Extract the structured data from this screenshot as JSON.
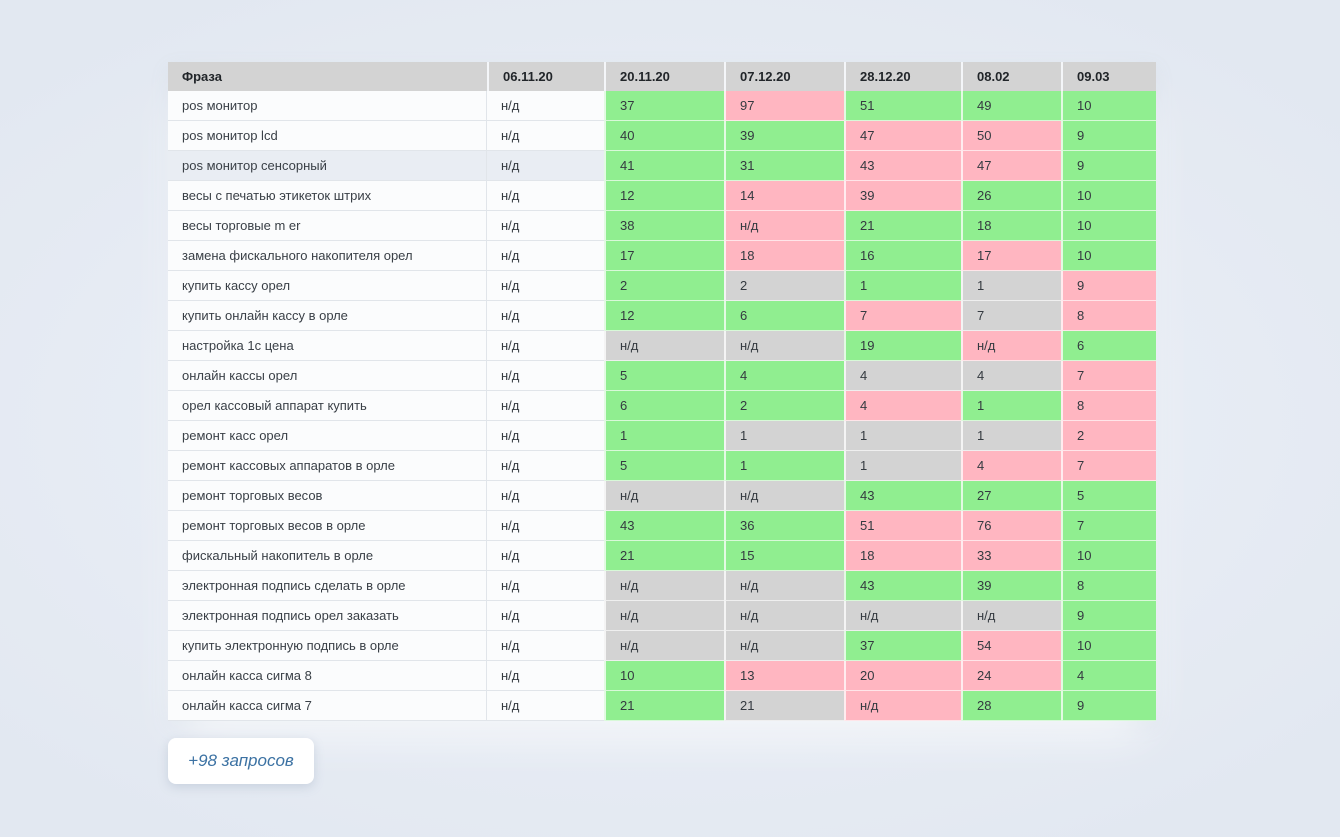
{
  "table": {
    "columns": [
      {
        "label": "Фраза"
      },
      {
        "label": "06.11.20"
      },
      {
        "label": "20.11.20"
      },
      {
        "label": "07.12.20"
      },
      {
        "label": "28.12.20"
      },
      {
        "label": "08.02"
      },
      {
        "label": "09.03"
      }
    ],
    "rows": [
      {
        "phrase": "pos монитор",
        "highlight": false,
        "values": [
          {
            "v": "н/д",
            "c": "plain"
          },
          {
            "v": "37",
            "c": "green"
          },
          {
            "v": "97",
            "c": "red"
          },
          {
            "v": "51",
            "c": "green"
          },
          {
            "v": "49",
            "c": "green"
          },
          {
            "v": "10",
            "c": "green"
          }
        ]
      },
      {
        "phrase": "pos монитор lcd",
        "highlight": false,
        "values": [
          {
            "v": "н/д",
            "c": "plain"
          },
          {
            "v": "40",
            "c": "green"
          },
          {
            "v": "39",
            "c": "green"
          },
          {
            "v": "47",
            "c": "red"
          },
          {
            "v": "50",
            "c": "red"
          },
          {
            "v": "9",
            "c": "green"
          }
        ]
      },
      {
        "phrase": "pos монитор сенсорный",
        "highlight": true,
        "values": [
          {
            "v": "н/д",
            "c": "plain"
          },
          {
            "v": "41",
            "c": "green"
          },
          {
            "v": "31",
            "c": "green"
          },
          {
            "v": "43",
            "c": "red"
          },
          {
            "v": "47",
            "c": "red"
          },
          {
            "v": "9",
            "c": "green"
          }
        ]
      },
      {
        "phrase": "весы с печатью этикеток штрих",
        "highlight": false,
        "values": [
          {
            "v": "н/д",
            "c": "plain"
          },
          {
            "v": "12",
            "c": "green"
          },
          {
            "v": "14",
            "c": "red"
          },
          {
            "v": "39",
            "c": "red"
          },
          {
            "v": "26",
            "c": "green"
          },
          {
            "v": "10",
            "c": "green"
          }
        ]
      },
      {
        "phrase": "весы торговые m er",
        "highlight": false,
        "values": [
          {
            "v": "н/д",
            "c": "plain"
          },
          {
            "v": "38",
            "c": "green"
          },
          {
            "v": "н/д",
            "c": "red"
          },
          {
            "v": "21",
            "c": "green"
          },
          {
            "v": "18",
            "c": "green"
          },
          {
            "v": "10",
            "c": "green"
          }
        ]
      },
      {
        "phrase": "замена фискального накопителя орел",
        "highlight": false,
        "values": [
          {
            "v": "н/д",
            "c": "plain"
          },
          {
            "v": "17",
            "c": "green"
          },
          {
            "v": "18",
            "c": "red"
          },
          {
            "v": "16",
            "c": "green"
          },
          {
            "v": "17",
            "c": "red"
          },
          {
            "v": "10",
            "c": "green"
          }
        ]
      },
      {
        "phrase": "купить кассу орел",
        "highlight": false,
        "values": [
          {
            "v": "н/д",
            "c": "plain"
          },
          {
            "v": "2",
            "c": "green"
          },
          {
            "v": "2",
            "c": "gray"
          },
          {
            "v": "1",
            "c": "green"
          },
          {
            "v": "1",
            "c": "gray"
          },
          {
            "v": "9",
            "c": "red"
          }
        ]
      },
      {
        "phrase": "купить онлайн кассу в орле",
        "highlight": false,
        "values": [
          {
            "v": "н/д",
            "c": "plain"
          },
          {
            "v": "12",
            "c": "green"
          },
          {
            "v": "6",
            "c": "green"
          },
          {
            "v": "7",
            "c": "red"
          },
          {
            "v": "7",
            "c": "gray"
          },
          {
            "v": "8",
            "c": "red"
          }
        ]
      },
      {
        "phrase": "настройка 1с цена",
        "highlight": false,
        "values": [
          {
            "v": "н/д",
            "c": "plain"
          },
          {
            "v": "н/д",
            "c": "gray"
          },
          {
            "v": "н/д",
            "c": "gray"
          },
          {
            "v": "19",
            "c": "green"
          },
          {
            "v": "н/д",
            "c": "red"
          },
          {
            "v": "6",
            "c": "green"
          }
        ]
      },
      {
        "phrase": "онлайн кассы орел",
        "highlight": false,
        "values": [
          {
            "v": "н/д",
            "c": "plain"
          },
          {
            "v": "5",
            "c": "green"
          },
          {
            "v": "4",
            "c": "green"
          },
          {
            "v": "4",
            "c": "gray"
          },
          {
            "v": "4",
            "c": "gray"
          },
          {
            "v": "7",
            "c": "red"
          }
        ]
      },
      {
        "phrase": "орел кассовый аппарат купить",
        "highlight": false,
        "values": [
          {
            "v": "н/д",
            "c": "plain"
          },
          {
            "v": "6",
            "c": "green"
          },
          {
            "v": "2",
            "c": "green"
          },
          {
            "v": "4",
            "c": "red"
          },
          {
            "v": "1",
            "c": "green"
          },
          {
            "v": "8",
            "c": "red"
          }
        ]
      },
      {
        "phrase": "ремонт касс орел",
        "highlight": false,
        "values": [
          {
            "v": "н/д",
            "c": "plain"
          },
          {
            "v": "1",
            "c": "green"
          },
          {
            "v": "1",
            "c": "gray"
          },
          {
            "v": "1",
            "c": "gray"
          },
          {
            "v": "1",
            "c": "gray"
          },
          {
            "v": "2",
            "c": "red"
          }
        ]
      },
      {
        "phrase": "ремонт кассовых аппаратов в орле",
        "highlight": false,
        "values": [
          {
            "v": "н/д",
            "c": "plain"
          },
          {
            "v": "5",
            "c": "green"
          },
          {
            "v": "1",
            "c": "green"
          },
          {
            "v": "1",
            "c": "gray"
          },
          {
            "v": "4",
            "c": "red"
          },
          {
            "v": "7",
            "c": "red"
          }
        ]
      },
      {
        "phrase": "ремонт торговых весов",
        "highlight": false,
        "values": [
          {
            "v": "н/д",
            "c": "plain"
          },
          {
            "v": "н/д",
            "c": "gray"
          },
          {
            "v": "н/д",
            "c": "gray"
          },
          {
            "v": "43",
            "c": "green"
          },
          {
            "v": "27",
            "c": "green"
          },
          {
            "v": "5",
            "c": "green"
          }
        ]
      },
      {
        "phrase": "ремонт торговых весов в орле",
        "highlight": false,
        "values": [
          {
            "v": "н/д",
            "c": "plain"
          },
          {
            "v": "43",
            "c": "green"
          },
          {
            "v": "36",
            "c": "green"
          },
          {
            "v": "51",
            "c": "red"
          },
          {
            "v": "76",
            "c": "red"
          },
          {
            "v": "7",
            "c": "green"
          }
        ]
      },
      {
        "phrase": "фискальный накопитель в орле",
        "highlight": false,
        "values": [
          {
            "v": "н/д",
            "c": "plain"
          },
          {
            "v": "21",
            "c": "green"
          },
          {
            "v": "15",
            "c": "green"
          },
          {
            "v": "18",
            "c": "red"
          },
          {
            "v": "33",
            "c": "red"
          },
          {
            "v": "10",
            "c": "green"
          }
        ]
      },
      {
        "phrase": "электронная подпись сделать в орле",
        "highlight": false,
        "values": [
          {
            "v": "н/д",
            "c": "plain"
          },
          {
            "v": "н/д",
            "c": "gray"
          },
          {
            "v": "н/д",
            "c": "gray"
          },
          {
            "v": "43",
            "c": "green"
          },
          {
            "v": "39",
            "c": "green"
          },
          {
            "v": "8",
            "c": "green"
          }
        ]
      },
      {
        "phrase": "электронная подпись орел заказать",
        "highlight": false,
        "values": [
          {
            "v": "н/д",
            "c": "plain"
          },
          {
            "v": "н/д",
            "c": "gray"
          },
          {
            "v": "н/д",
            "c": "gray"
          },
          {
            "v": "н/д",
            "c": "gray"
          },
          {
            "v": "н/д",
            "c": "gray"
          },
          {
            "v": "9",
            "c": "green"
          }
        ]
      },
      {
        "phrase": "купить электронную подпись в орле",
        "highlight": false,
        "values": [
          {
            "v": "н/д",
            "c": "plain"
          },
          {
            "v": "н/д",
            "c": "gray"
          },
          {
            "v": "н/д",
            "c": "gray"
          },
          {
            "v": "37",
            "c": "green"
          },
          {
            "v": "54",
            "c": "red"
          },
          {
            "v": "10",
            "c": "green"
          }
        ]
      },
      {
        "phrase": "онлайн касса сигма 8",
        "highlight": false,
        "values": [
          {
            "v": "н/д",
            "c": "plain"
          },
          {
            "v": "10",
            "c": "green"
          },
          {
            "v": "13",
            "c": "red"
          },
          {
            "v": "20",
            "c": "red"
          },
          {
            "v": "24",
            "c": "red"
          },
          {
            "v": "4",
            "c": "green"
          }
        ]
      },
      {
        "phrase": "онлайн касса сигма 7",
        "highlight": false,
        "values": [
          {
            "v": "н/д",
            "c": "plain"
          },
          {
            "v": "21",
            "c": "green"
          },
          {
            "v": "21",
            "c": "gray"
          },
          {
            "v": "н/д",
            "c": "red"
          },
          {
            "v": "28",
            "c": "green"
          },
          {
            "v": "9",
            "c": "green"
          }
        ]
      }
    ]
  },
  "footer": {
    "more_label": "+98 запросов"
  },
  "colors": {
    "position_up_green": "#90ee90",
    "position_down_red": "#ffb6c1",
    "no_data_gray": "#d3d3d3",
    "header_gray": "#d3d3d3",
    "page_background": "#e6ecf4",
    "button_text_blue": "#3c72a3"
  }
}
